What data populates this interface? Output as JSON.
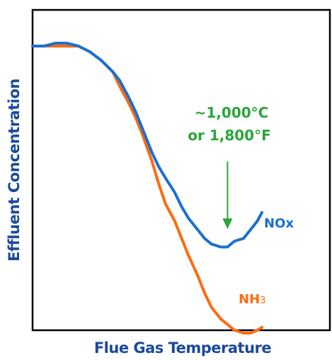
{
  "chart_data": {
    "type": "line",
    "title": "",
    "xlabel": "Flue Gas Temperature",
    "ylabel": "Effluent Concentration",
    "xlim": [
      0,
      100
    ],
    "ylim": [
      0,
      100
    ],
    "grid": false,
    "x_ticks_shown": false,
    "y_ticks_shown": false,
    "colors": {
      "axis_title": "#1a4a9a",
      "annotation": "#2aa63a",
      "frame": "#000000"
    },
    "series": [
      {
        "name": "NOx",
        "label_main": "NOx",
        "label_sub": "",
        "color": "#1b6fd0",
        "x": [
          0,
          5,
          10,
          15,
          20,
          25,
          30,
          35,
          38,
          42,
          45,
          48,
          52,
          55,
          58,
          62,
          65,
          68,
          72,
          75,
          78,
          82,
          85,
          88,
          92,
          95,
          98,
          100
        ],
        "y": [
          100,
          100,
          101,
          101,
          100,
          98,
          95,
          91,
          88,
          82,
          77,
          71,
          63,
          58,
          54,
          49,
          44,
          40,
          36,
          33,
          31,
          30,
          30,
          32,
          33,
          36,
          39,
          42
        ]
      },
      {
        "name": "NH3",
        "label_main": "NH",
        "label_sub": "3",
        "color": "#ff6a10",
        "x": [
          0,
          5,
          10,
          15,
          20,
          25,
          30,
          35,
          38,
          42,
          45,
          48,
          52,
          55,
          58,
          62,
          65,
          68,
          72,
          75,
          78,
          82,
          85,
          88,
          92,
          95,
          98,
          100
        ],
        "y": [
          100,
          100,
          100,
          100,
          100,
          98,
          95,
          91,
          86,
          80,
          75,
          69,
          60,
          52,
          45,
          39,
          33,
          27,
          20,
          14,
          9,
          5,
          3,
          1,
          0,
          0,
          1,
          2
        ]
      }
    ],
    "annotations": [
      {
        "line1": "~1,000°C",
        "line2": "or 1,800°F",
        "arrow_to_x": 85,
        "arrow_to_y": 36
      }
    ]
  }
}
